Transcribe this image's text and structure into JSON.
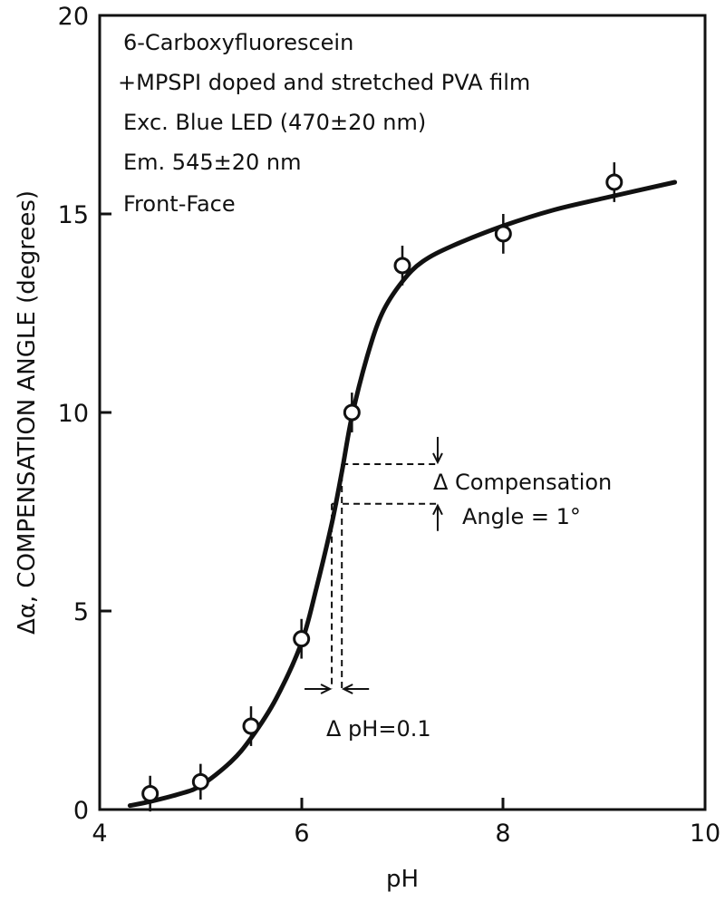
{
  "chart_data": {
    "type": "scatter",
    "xlabel": "pH",
    "ylabel": "Δα, COMPENSATION ANGLE (degrees)",
    "xlim": [
      4,
      10
    ],
    "ylim": [
      0,
      20
    ],
    "x_ticks": [
      "4",
      "6",
      "8",
      "10"
    ],
    "y_ticks": [
      "0",
      "5",
      "10",
      "15",
      "20"
    ],
    "grid": false,
    "annotation_lines": [
      "6-Carboxyfluorescein",
      "+MPSPI doped and stretched PVA film",
      "Exc. Blue LED (470±20 nm)",
      "Em. 545±20 nm",
      "Front-Face"
    ],
    "delta_angle_label": [
      "Δ Compensation",
      "Angle = 1°"
    ],
    "delta_ph_label": "Δ pH=0.1",
    "points": [
      {
        "x": 4.5,
        "y": 0.4,
        "err": 0.45
      },
      {
        "x": 5.0,
        "y": 0.7,
        "err": 0.45
      },
      {
        "x": 5.5,
        "y": 2.1,
        "err": 0.5
      },
      {
        "x": 6.0,
        "y": 4.3,
        "err": 0.5
      },
      {
        "x": 6.5,
        "y": 10.0,
        "err": 0.5
      },
      {
        "x": 7.0,
        "y": 13.7,
        "err": 0.5
      },
      {
        "x": 8.0,
        "y": 14.5,
        "err": 0.5
      },
      {
        "x": 9.1,
        "y": 15.8,
        "err": 0.5
      }
    ],
    "fit_curve": [
      [
        4.3,
        0.1
      ],
      [
        4.5,
        0.2
      ],
      [
        4.8,
        0.4
      ],
      [
        5.0,
        0.6
      ],
      [
        5.3,
        1.2
      ],
      [
        5.5,
        1.8
      ],
      [
        5.75,
        2.8
      ],
      [
        6.0,
        4.2
      ],
      [
        6.15,
        5.6
      ],
      [
        6.3,
        7.2
      ],
      [
        6.4,
        8.5
      ],
      [
        6.5,
        9.9
      ],
      [
        6.65,
        11.4
      ],
      [
        6.8,
        12.5
      ],
      [
        7.0,
        13.3
      ],
      [
        7.2,
        13.8
      ],
      [
        7.5,
        14.2
      ],
      [
        8.0,
        14.7
      ],
      [
        8.5,
        15.1
      ],
      [
        9.0,
        15.4
      ],
      [
        9.7,
        15.8
      ]
    ],
    "dashed_lines": {
      "y_high": 8.7,
      "y_low": 7.7,
      "x_right": 7.35,
      "x_left_ph": 6.3,
      "x_right_ph": 6.4
    }
  }
}
